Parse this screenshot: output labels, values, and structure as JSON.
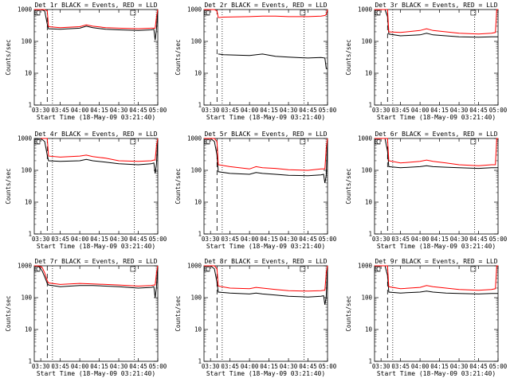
{
  "figure": {
    "xlabel": "Start Time (18-May-09 03:21:40)",
    "ylabel": "Counts/sec",
    "marker_label": "C"
  },
  "colors": {
    "events": "#000000",
    "lld": "#ff0000",
    "axes": "#000000"
  },
  "chart_data": {
    "type": "line",
    "layout": "3x3",
    "yscale": "log",
    "ylim": [
      1,
      1000
    ],
    "yticks": [
      "1",
      "10",
      "100",
      "1000"
    ],
    "xlim": [
      "03:25",
      "05:00"
    ],
    "xticks": [
      "03:30",
      "03:45",
      "04:00",
      "04:15",
      "04:30",
      "04:45",
      "05:00"
    ],
    "dashed_marker": "03:35",
    "dotted_markers": [
      "03:39",
      "04:42"
    ],
    "panels": [
      {
        "title": "Det 1r BLACK = Events, RED = LLD",
        "x": [
          "03:25",
          "03:30",
          "03:33",
          "03:35",
          "03:36",
          "03:45",
          "04:00",
          "04:05",
          "04:10",
          "04:20",
          "04:30",
          "04:45",
          "04:55",
          "04:57",
          "04:58",
          "04:59",
          "05:00"
        ],
        "series": [
          {
            "values": [
              1000,
              1000,
              900,
              350,
              250,
              240,
              260,
              300,
              270,
              240,
              230,
              220,
              230,
              240,
              110,
              250,
              1000
            ]
          },
          {
            "values": [
              1000,
              1000,
              1000,
              900,
              290,
              270,
              290,
              330,
              300,
              270,
              260,
              250,
              260,
              260,
              260,
              600,
              1000
            ]
          }
        ]
      },
      {
        "title": "Det 2r BLACK = Events, RED = LLD",
        "x": [
          "03:25",
          "03:30",
          "03:33",
          "03:35",
          "03:36",
          "03:40",
          "04:00",
          "04:10",
          "04:20",
          "04:30",
          "04:45",
          "04:55",
          "04:58",
          "04:59",
          "05:00"
        ],
        "series": [
          {
            "values": [
              null,
              null,
              null,
              null,
              40,
              38,
              36,
              40,
              34,
              32,
              30,
              31,
              30,
              14,
              14
            ]
          },
          {
            "values": [
              1000,
              1000,
              1000,
              900,
              560,
              580,
              600,
              620,
              620,
              600,
              600,
              620,
              650,
              700,
              1000
            ]
          }
        ]
      },
      {
        "title": "Det 3r BLACK = Events, RED = LLD",
        "x": [
          "03:25",
          "03:30",
          "03:33",
          "03:35",
          "03:36",
          "03:45",
          "04:00",
          "04:05",
          "04:10",
          "04:20",
          "04:30",
          "04:45",
          "04:55",
          "04:58",
          "04:59",
          "05:00"
        ],
        "series": [
          {
            "values": [
              1000,
              1000,
              1000,
              600,
              170,
              150,
              160,
              180,
              160,
              150,
              140,
              135,
              140,
              140,
              140,
              140
            ]
          },
          {
            "values": [
              1000,
              1000,
              1000,
              1000,
              200,
              190,
              220,
              250,
              220,
              200,
              180,
              170,
              180,
              190,
              1000,
              1000
            ]
          }
        ]
      },
      {
        "title": "Det 4r BLACK = Events, RED = LLD",
        "x": [
          "03:25",
          "03:30",
          "03:33",
          "03:35",
          "03:36",
          "03:45",
          "04:00",
          "04:05",
          "04:10",
          "04:20",
          "04:30",
          "04:45",
          "04:55",
          "04:57",
          "04:58",
          "04:59",
          "05:00"
        ],
        "series": [
          {
            "values": [
              null,
              1000,
              800,
              300,
              200,
              190,
              200,
              220,
              200,
              180,
              160,
              150,
              160,
              170,
              80,
              160,
              1000
            ]
          },
          {
            "values": [
              null,
              1000,
              1000,
              1000,
              280,
              260,
              280,
              300,
              270,
              240,
              200,
              190,
              200,
              210,
              210,
              600,
              1000
            ]
          }
        ]
      },
      {
        "title": "Det 5r BLACK = Events, RED = LLD",
        "x": [
          "03:25",
          "03:30",
          "03:33",
          "03:35",
          "03:36",
          "03:45",
          "04:00",
          "04:05",
          "04:10",
          "04:20",
          "04:30",
          "04:45",
          "04:55",
          "04:57",
          "04:58",
          "04:59",
          "05:00"
        ],
        "series": [
          {
            "values": [
              1000,
              1000,
              800,
              300,
              90,
              80,
              75,
              85,
              80,
              75,
              70,
              68,
              72,
              75,
              40,
              70,
              1000
            ]
          },
          {
            "values": [
              1000,
              1000,
              1000,
              800,
              150,
              130,
              110,
              130,
              120,
              115,
              105,
              100,
              110,
              110,
              110,
              500,
              1000
            ]
          }
        ]
      },
      {
        "title": "Det 6r BLACK = Events, RED = LLD",
        "x": [
          "03:25",
          "03:30",
          "03:33",
          "03:35",
          "03:36",
          "03:45",
          "04:00",
          "04:05",
          "04:10",
          "04:20",
          "04:30",
          "04:45",
          "04:55",
          "04:58",
          "04:59",
          "05:00"
        ],
        "series": [
          {
            "values": [
              1000,
              1000,
              1000,
              400,
              130,
              120,
              130,
              140,
              130,
              125,
              120,
              115,
              120,
              120,
              120,
              120
            ]
          },
          {
            "values": [
              1000,
              1000,
              1000,
              1000,
              200,
              170,
              190,
              210,
              190,
              170,
              150,
              140,
              150,
              150,
              1000,
              1000
            ]
          }
        ]
      },
      {
        "title": "Det 7r BLACK = Events, RED = LLD",
        "x": [
          "03:25",
          "03:28",
          "03:31",
          "03:33",
          "03:35",
          "03:36",
          "03:45",
          "04:00",
          "04:10",
          "04:20",
          "04:30",
          "04:45",
          "04:55",
          "04:57",
          "04:58",
          "04:59",
          "05:00"
        ],
        "series": [
          {
            "values": [
              1000,
              1000,
              700,
              450,
              280,
              250,
              220,
              240,
              240,
              230,
              220,
              200,
              210,
              220,
              100,
              220,
              1000
            ]
          },
          {
            "values": [
              1000,
              1000,
              900,
              600,
              340,
              290,
              260,
              280,
              270,
              260,
              250,
              230,
              240,
              250,
              250,
              600,
              1000
            ]
          }
        ]
      },
      {
        "title": "Det 8r BLACK = Events, RED = LLD",
        "x": [
          "03:25",
          "03:30",
          "03:33",
          "03:35",
          "03:36",
          "03:45",
          "04:00",
          "04:05",
          "04:10",
          "04:20",
          "04:30",
          "04:45",
          "04:55",
          "04:57",
          "04:58",
          "04:59",
          "05:00"
        ],
        "series": [
          {
            "values": [
              1000,
              1000,
              800,
              300,
              150,
              140,
              130,
              140,
              130,
              120,
              110,
              105,
              110,
              115,
              60,
              110,
              1000
            ]
          },
          {
            "values": [
              1000,
              1000,
              1000,
              800,
              230,
              200,
              190,
              210,
              200,
              180,
              165,
              160,
              165,
              170,
              170,
              600,
              1000
            ]
          }
        ]
      },
      {
        "title": "Det 9r BLACK = Events, RED = LLD",
        "x": [
          "03:25",
          "03:30",
          "03:33",
          "03:35",
          "03:36",
          "03:45",
          "04:00",
          "04:05",
          "04:10",
          "04:20",
          "04:30",
          "04:45",
          "04:55",
          "04:58",
          "04:59",
          "05:00"
        ],
        "series": [
          {
            "values": [
              1000,
              1000,
              1000,
              500,
              150,
              140,
              150,
              160,
              150,
              140,
              135,
              130,
              135,
              135,
              135,
              135
            ]
          },
          {
            "values": [
              1000,
              1000,
              1000,
              1000,
              220,
              190,
              210,
              240,
              220,
              200,
              180,
              170,
              180,
              190,
              1000,
              1000
            ]
          }
        ]
      }
    ]
  }
}
